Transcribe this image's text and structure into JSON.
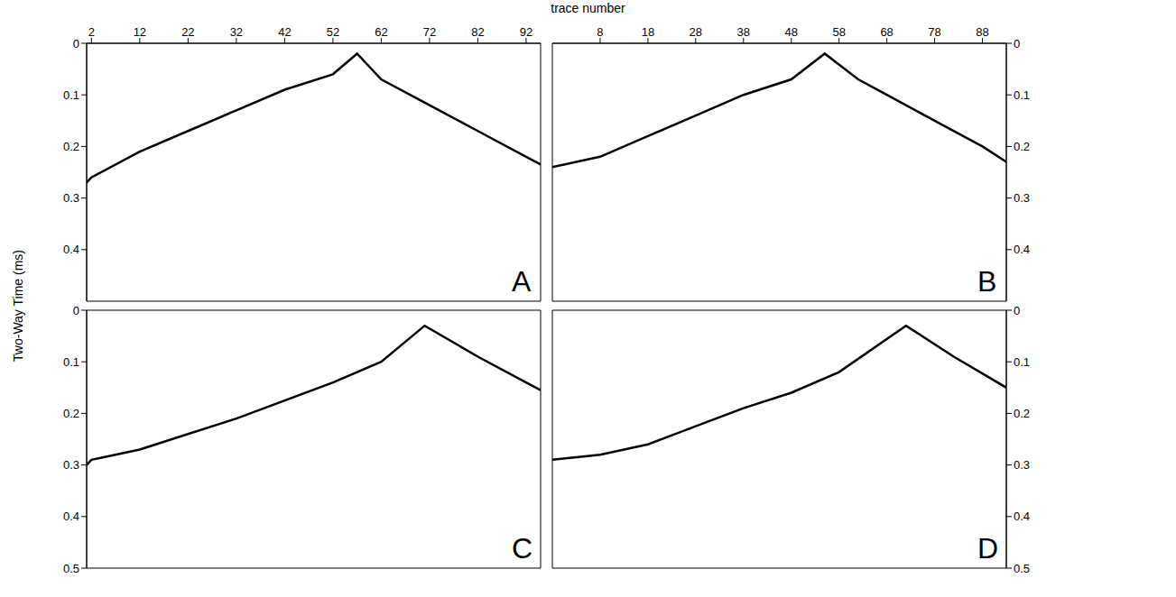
{
  "x_label": "trace number",
  "y_label": "Two-Way Time (ms)",
  "chart_data": [
    {
      "type": "line",
      "title": "A",
      "color": "#000000",
      "x": [
        1,
        2,
        12,
        22,
        32,
        42,
        52,
        57,
        62,
        72,
        82,
        92,
        95
      ],
      "values": [
        0.27,
        0.26,
        0.21,
        0.17,
        0.13,
        0.09,
        0.06,
        0.02,
        0.07,
        0.12,
        0.17,
        0.22,
        0.235
      ],
      "xlim": [
        1,
        95
      ],
      "xticks": [
        2,
        12,
        22,
        32,
        42,
        52,
        62,
        72,
        82,
        92
      ],
      "ylim": [
        0,
        0.5
      ],
      "yticks": [
        0,
        0.1,
        0.2,
        0.3,
        0.4
      ]
    },
    {
      "type": "line",
      "title": "B",
      "color": "#000000",
      "x": [
        -2,
        8,
        18,
        28,
        38,
        48,
        55,
        62,
        68,
        78,
        88,
        93
      ],
      "values": [
        0.24,
        0.22,
        0.18,
        0.14,
        0.1,
        0.07,
        0.02,
        0.07,
        0.1,
        0.15,
        0.2,
        0.23
      ],
      "xlim": [
        -2,
        93
      ],
      "xticks": [
        8,
        18,
        28,
        38,
        48,
        58,
        68,
        78,
        88
      ],
      "ylim": [
        0,
        0.5
      ],
      "yticks": [
        0,
        0.1,
        0.2,
        0.3,
        0.4
      ]
    },
    {
      "type": "line",
      "title": "C",
      "color": "#000000",
      "x": [
        1,
        2,
        12,
        22,
        32,
        42,
        52,
        62,
        71,
        82,
        92,
        95
      ],
      "values": [
        0.3,
        0.29,
        0.27,
        0.24,
        0.21,
        0.175,
        0.14,
        0.1,
        0.03,
        0.09,
        0.14,
        0.155
      ],
      "xlim": [
        1,
        95
      ],
      "ylim": [
        0,
        0.5
      ],
      "yticks": [
        0,
        0.1,
        0.2,
        0.3,
        0.4,
        0.5
      ],
      "tick_labels": "y"
    },
    {
      "type": "line",
      "title": "D",
      "color": "#000000",
      "x": [
        -2,
        8,
        18,
        28,
        38,
        48,
        58,
        72,
        82,
        93
      ],
      "values": [
        0.29,
        0.28,
        0.26,
        0.225,
        0.19,
        0.16,
        0.12,
        0.03,
        0.09,
        0.15
      ],
      "xlim": [
        -2,
        93
      ],
      "ylim": [
        0,
        0.5
      ],
      "yticks": [
        0,
        0.1,
        0.2,
        0.3,
        0.4,
        0.5
      ],
      "tick_labels": "y"
    }
  ]
}
